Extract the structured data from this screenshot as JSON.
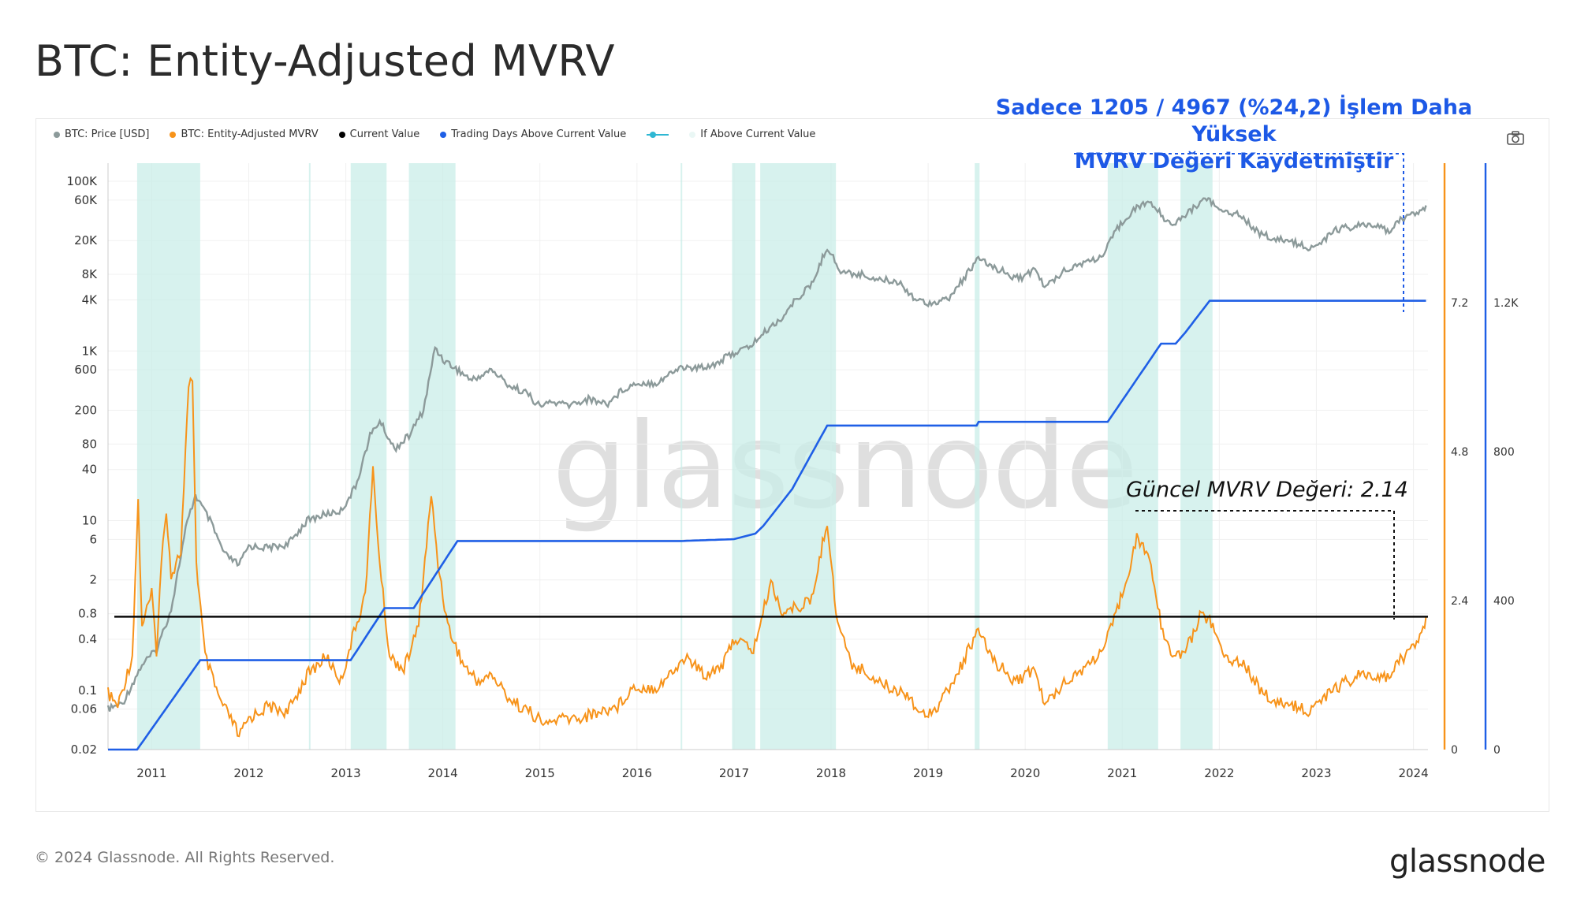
{
  "title": "BTC: Entity-Adjusted MVRV",
  "legend": [
    {
      "label": "BTC: Price [USD]",
      "color": "#8c9a9a"
    },
    {
      "label": "BTC: Entity-Adjusted MVRV",
      "color": "#f7931a"
    },
    {
      "label": "Current Value",
      "color": "#000000"
    },
    {
      "label": "Trading Days Above Current Value",
      "color": "#1f5fe6"
    },
    {
      "label": "",
      "color": "#2fb7d3"
    },
    {
      "label": "If Above Current Value",
      "color": "#eaf7f5"
    }
  ],
  "callout": {
    "line1": "Sadece 1205 / 4967 (%24,2) İşlem Daha Yüksek",
    "line2": "MVRV Değeri Kaydetmiştir"
  },
  "current_note": "Güncel MVRV Değeri: 2.14",
  "watermark": "glassnode",
  "footer": "© 2024 Glassnode. All Rights Reserved.",
  "brand": "glassnode",
  "icons": {
    "camera": "camera-icon"
  },
  "chart_data": {
    "type": "line",
    "x_ticks": [
      "2011",
      "2012",
      "2013",
      "2014",
      "2015",
      "2016",
      "2017",
      "2018",
      "2019",
      "2020",
      "2021",
      "2022",
      "2023",
      "2024"
    ],
    "left_axis_ticks": [
      "100K",
      "60K",
      "20K",
      "8K",
      "4K",
      "1K",
      "600",
      "200",
      "80",
      "40",
      "10",
      "6",
      "2",
      "0.8",
      "0.4",
      "0.1",
      "0.06",
      "0.02"
    ],
    "mvrv_axis_ticks": [
      "7.2",
      "4.8",
      "2.4",
      "0"
    ],
    "days_axis_ticks": [
      "1.2K",
      "800",
      "400",
      "0"
    ],
    "current_value": 2.14,
    "series": [
      {
        "name": "BTC: Price [USD]",
        "color": "#8c9a9a",
        "points": [
          [
            2010.55,
            0.06
          ],
          [
            2010.7,
            0.07
          ],
          [
            2010.9,
            0.2
          ],
          [
            2011.05,
            0.3
          ],
          [
            2011.2,
            0.9
          ],
          [
            2011.35,
            8
          ],
          [
            2011.45,
            20
          ],
          [
            2011.6,
            10
          ],
          [
            2011.75,
            4
          ],
          [
            2011.9,
            3
          ],
          [
            2012.0,
            5
          ],
          [
            2012.2,
            4.8
          ],
          [
            2012.4,
            5.2
          ],
          [
            2012.6,
            10
          ],
          [
            2012.8,
            12
          ],
          [
            2012.95,
            13
          ],
          [
            2013.1,
            25
          ],
          [
            2013.25,
            100
          ],
          [
            2013.35,
            150
          ],
          [
            2013.5,
            70
          ],
          [
            2013.65,
            100
          ],
          [
            2013.8,
            200
          ],
          [
            2013.92,
            1100
          ],
          [
            2014.0,
            800
          ],
          [
            2014.15,
            600
          ],
          [
            2014.3,
            450
          ],
          [
            2014.5,
            600
          ],
          [
            2014.7,
            380
          ],
          [
            2014.85,
            330
          ],
          [
            2015.0,
            220
          ],
          [
            2015.1,
            250
          ],
          [
            2015.3,
            230
          ],
          [
            2015.5,
            270
          ],
          [
            2015.7,
            240
          ],
          [
            2015.85,
            350
          ],
          [
            2016.0,
            420
          ],
          [
            2016.2,
            420
          ],
          [
            2016.45,
            650
          ],
          [
            2016.6,
            620
          ],
          [
            2016.8,
            700
          ],
          [
            2017.0,
            950
          ],
          [
            2017.15,
            1100
          ],
          [
            2017.35,
            1800
          ],
          [
            2017.5,
            2500
          ],
          [
            2017.65,
            4200
          ],
          [
            2017.8,
            6000
          ],
          [
            2017.96,
            17000
          ],
          [
            2018.1,
            8500
          ],
          [
            2018.3,
            8000
          ],
          [
            2018.5,
            7000
          ],
          [
            2018.7,
            6500
          ],
          [
            2018.88,
            4000
          ],
          [
            2019.0,
            3700
          ],
          [
            2019.2,
            4000
          ],
          [
            2019.4,
            8000
          ],
          [
            2019.5,
            12000
          ],
          [
            2019.7,
            9500
          ],
          [
            2019.9,
            7300
          ],
          [
            2020.0,
            7500
          ],
          [
            2020.1,
            9500
          ],
          [
            2020.2,
            5500
          ],
          [
            2020.4,
            9000
          ],
          [
            2020.6,
            11000
          ],
          [
            2020.8,
            13000
          ],
          [
            2020.95,
            28000
          ],
          [
            2021.1,
            45000
          ],
          [
            2021.28,
            58000
          ],
          [
            2021.45,
            35000
          ],
          [
            2021.55,
            32000
          ],
          [
            2021.7,
            45000
          ],
          [
            2021.87,
            65000
          ],
          [
            2022.0,
            45000
          ],
          [
            2022.2,
            42000
          ],
          [
            2022.4,
            25000
          ],
          [
            2022.55,
            21000
          ],
          [
            2022.75,
            19500
          ],
          [
            2022.9,
            16500
          ],
          [
            2023.0,
            17000
          ],
          [
            2023.2,
            27000
          ],
          [
            2023.45,
            30000
          ],
          [
            2023.6,
            29000
          ],
          [
            2023.75,
            26500
          ],
          [
            2023.9,
            37000
          ],
          [
            2024.0,
            43000
          ],
          [
            2024.1,
            45000
          ],
          [
            2024.13,
            52000
          ]
        ]
      },
      {
        "name": "BTC: Entity-Adjusted MVRV",
        "color": "#f7931a",
        "points": [
          [
            2010.55,
            0.9
          ],
          [
            2010.65,
            0.7
          ],
          [
            2010.8,
            1.5
          ],
          [
            2010.86,
            4.0
          ],
          [
            2010.9,
            2.0
          ],
          [
            2011.0,
            2.5
          ],
          [
            2011.05,
            1.6
          ],
          [
            2011.1,
            3.0
          ],
          [
            2011.15,
            3.9
          ],
          [
            2011.2,
            2.8
          ],
          [
            2011.3,
            3.2
          ],
          [
            2011.38,
            5.8
          ],
          [
            2011.42,
            6.0
          ],
          [
            2011.46,
            3.0
          ],
          [
            2011.55,
            1.5
          ],
          [
            2011.7,
            0.8
          ],
          [
            2011.85,
            0.4
          ],
          [
            2011.9,
            0.2
          ],
          [
            2012.0,
            0.5
          ],
          [
            2012.2,
            0.7
          ],
          [
            2012.4,
            0.6
          ],
          [
            2012.6,
            1.2
          ],
          [
            2012.8,
            1.5
          ],
          [
            2012.95,
            1.1
          ],
          [
            2013.05,
            1.7
          ],
          [
            2013.2,
            2.5
          ],
          [
            2013.28,
            4.5
          ],
          [
            2013.35,
            3.0
          ],
          [
            2013.45,
            1.5
          ],
          [
            2013.6,
            1.3
          ],
          [
            2013.75,
            2.0
          ],
          [
            2013.88,
            4.1
          ],
          [
            2013.95,
            3.0
          ],
          [
            2014.05,
            2.0
          ],
          [
            2014.2,
            1.4
          ],
          [
            2014.35,
            1.1
          ],
          [
            2014.5,
            1.2
          ],
          [
            2014.7,
            0.8
          ],
          [
            2014.9,
            0.6
          ],
          [
            2015.05,
            0.4
          ],
          [
            2015.2,
            0.5
          ],
          [
            2015.4,
            0.5
          ],
          [
            2015.6,
            0.6
          ],
          [
            2015.8,
            0.7
          ],
          [
            2015.95,
            1.0
          ],
          [
            2016.2,
            1.0
          ],
          [
            2016.4,
            1.3
          ],
          [
            2016.5,
            1.5
          ],
          [
            2016.7,
            1.2
          ],
          [
            2016.9,
            1.4
          ],
          [
            2017.0,
            1.8
          ],
          [
            2017.2,
            1.6
          ],
          [
            2017.38,
            2.7
          ],
          [
            2017.5,
            2.2
          ],
          [
            2017.65,
            2.3
          ],
          [
            2017.8,
            2.4
          ],
          [
            2017.96,
            3.7
          ],
          [
            2018.05,
            2.2
          ],
          [
            2018.2,
            1.4
          ],
          [
            2018.4,
            1.2
          ],
          [
            2018.6,
            1.0
          ],
          [
            2018.8,
            0.9
          ],
          [
            2018.92,
            0.55
          ],
          [
            2019.1,
            0.7
          ],
          [
            2019.3,
            1.2
          ],
          [
            2019.5,
            1.9
          ],
          [
            2019.7,
            1.4
          ],
          [
            2019.9,
            1.1
          ],
          [
            2020.1,
            1.3
          ],
          [
            2020.2,
            0.7
          ],
          [
            2020.4,
            1.1
          ],
          [
            2020.6,
            1.3
          ],
          [
            2020.8,
            1.6
          ],
          [
            2020.9,
            2.0
          ],
          [
            2021.05,
            2.8
          ],
          [
            2021.15,
            3.4
          ],
          [
            2021.28,
            3.1
          ],
          [
            2021.4,
            2.0
          ],
          [
            2021.5,
            1.6
          ],
          [
            2021.6,
            1.5
          ],
          [
            2021.75,
            1.9
          ],
          [
            2021.8,
            2.2
          ],
          [
            2021.9,
            2.1
          ],
          [
            2022.05,
            1.5
          ],
          [
            2022.25,
            1.4
          ],
          [
            2022.45,
            0.9
          ],
          [
            2022.6,
            0.75
          ],
          [
            2022.8,
            0.7
          ],
          [
            2022.9,
            0.6
          ],
          [
            2023.05,
            0.8
          ],
          [
            2023.2,
            1.0
          ],
          [
            2023.45,
            1.2
          ],
          [
            2023.65,
            1.1
          ],
          [
            2023.8,
            1.3
          ],
          [
            2023.95,
            1.6
          ],
          [
            2024.0,
            1.7
          ],
          [
            2024.1,
            1.9
          ],
          [
            2024.13,
            2.14
          ]
        ]
      },
      {
        "name": "Trading Days Above Current Value",
        "color": "#1f5fe6",
        "points": [
          [
            2010.55,
            0
          ],
          [
            2010.85,
            0
          ],
          [
            2011.5,
            240
          ],
          [
            2012.55,
            240
          ],
          [
            2013.05,
            240
          ],
          [
            2013.4,
            380
          ],
          [
            2013.7,
            380
          ],
          [
            2014.15,
            560
          ],
          [
            2016.45,
            560
          ],
          [
            2017.0,
            565
          ],
          [
            2017.22,
            580
          ],
          [
            2017.3,
            600
          ],
          [
            2017.6,
            700
          ],
          [
            2017.96,
            870
          ],
          [
            2019.5,
            870
          ],
          [
            2019.52,
            880
          ],
          [
            2020.85,
            880
          ],
          [
            2021.4,
            1090
          ],
          [
            2021.55,
            1090
          ],
          [
            2021.65,
            1120
          ],
          [
            2021.9,
            1205
          ],
          [
            2024.13,
            1205
          ]
        ]
      }
    ],
    "above_current_bands": [
      [
        2010.85,
        2011.5
      ],
      [
        2012.62,
        2012.63
      ],
      [
        2013.05,
        2013.42
      ],
      [
        2013.65,
        2014.13
      ],
      [
        2016.45,
        2016.46
      ],
      [
        2016.98,
        2017.22
      ],
      [
        2017.27,
        2018.05
      ],
      [
        2019.48,
        2019.53
      ],
      [
        2020.85,
        2021.37
      ],
      [
        2021.6,
        2021.93
      ]
    ]
  }
}
